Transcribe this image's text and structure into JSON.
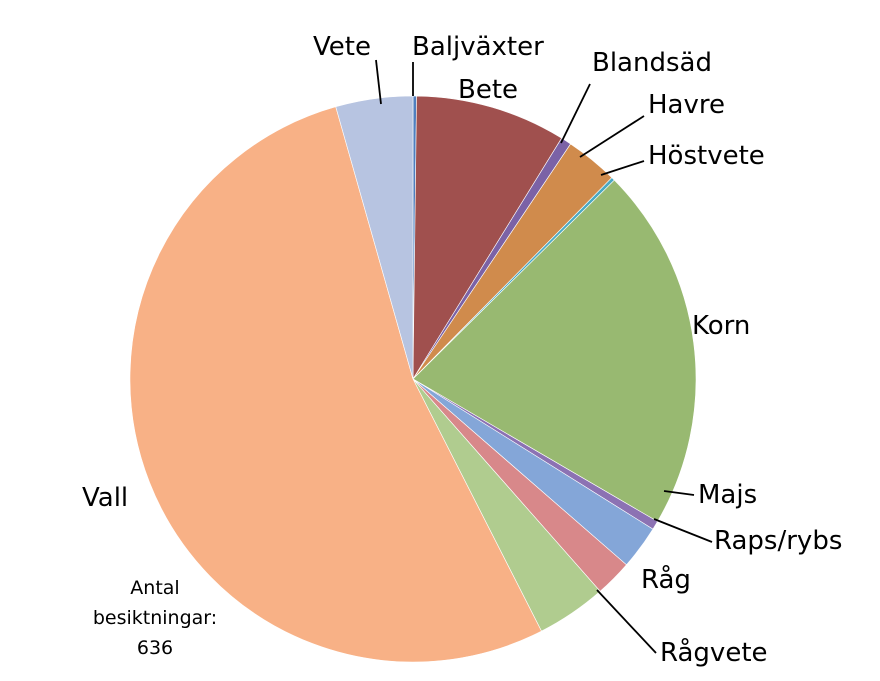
{
  "chart_data": {
    "type": "pie",
    "title": "",
    "start_angle_deg": 0,
    "direction": "clockwise",
    "slices": [
      {
        "label": "Baljväxter",
        "value": 0.2,
        "color": "#4f7fbf"
      },
      {
        "label": "Bete",
        "value": 8.6,
        "color": "#a0504e"
      },
      {
        "label": "Blandsäd",
        "value": 0.6,
        "color": "#7b62a6"
      },
      {
        "label": "Havre",
        "value": 3.0,
        "color": "#d08b4c"
      },
      {
        "label": "Höstvete",
        "value": 0.2,
        "color": "#4aa9c2"
      },
      {
        "label": "Korn",
        "value": 20.8,
        "color": "#98b971"
      },
      {
        "label": "Majs",
        "value": 0.5,
        "color": "#8c72b3"
      },
      {
        "label": "Raps/rybs",
        "value": 2.5,
        "color": "#84a6d8"
      },
      {
        "label": "Råg",
        "value": 2.1,
        "color": "#d8888a"
      },
      {
        "label": "Rågvete",
        "value": 4.0,
        "color": "#b0cc8f"
      },
      {
        "label": "Vall",
        "value": 53.1,
        "color": "#f8b186"
      },
      {
        "label": "Vete",
        "value": 4.4,
        "color": "#b7c4e1"
      }
    ]
  },
  "annotation": {
    "line1": "Antal",
    "line2": "besiktningar:",
    "line3": "636"
  }
}
